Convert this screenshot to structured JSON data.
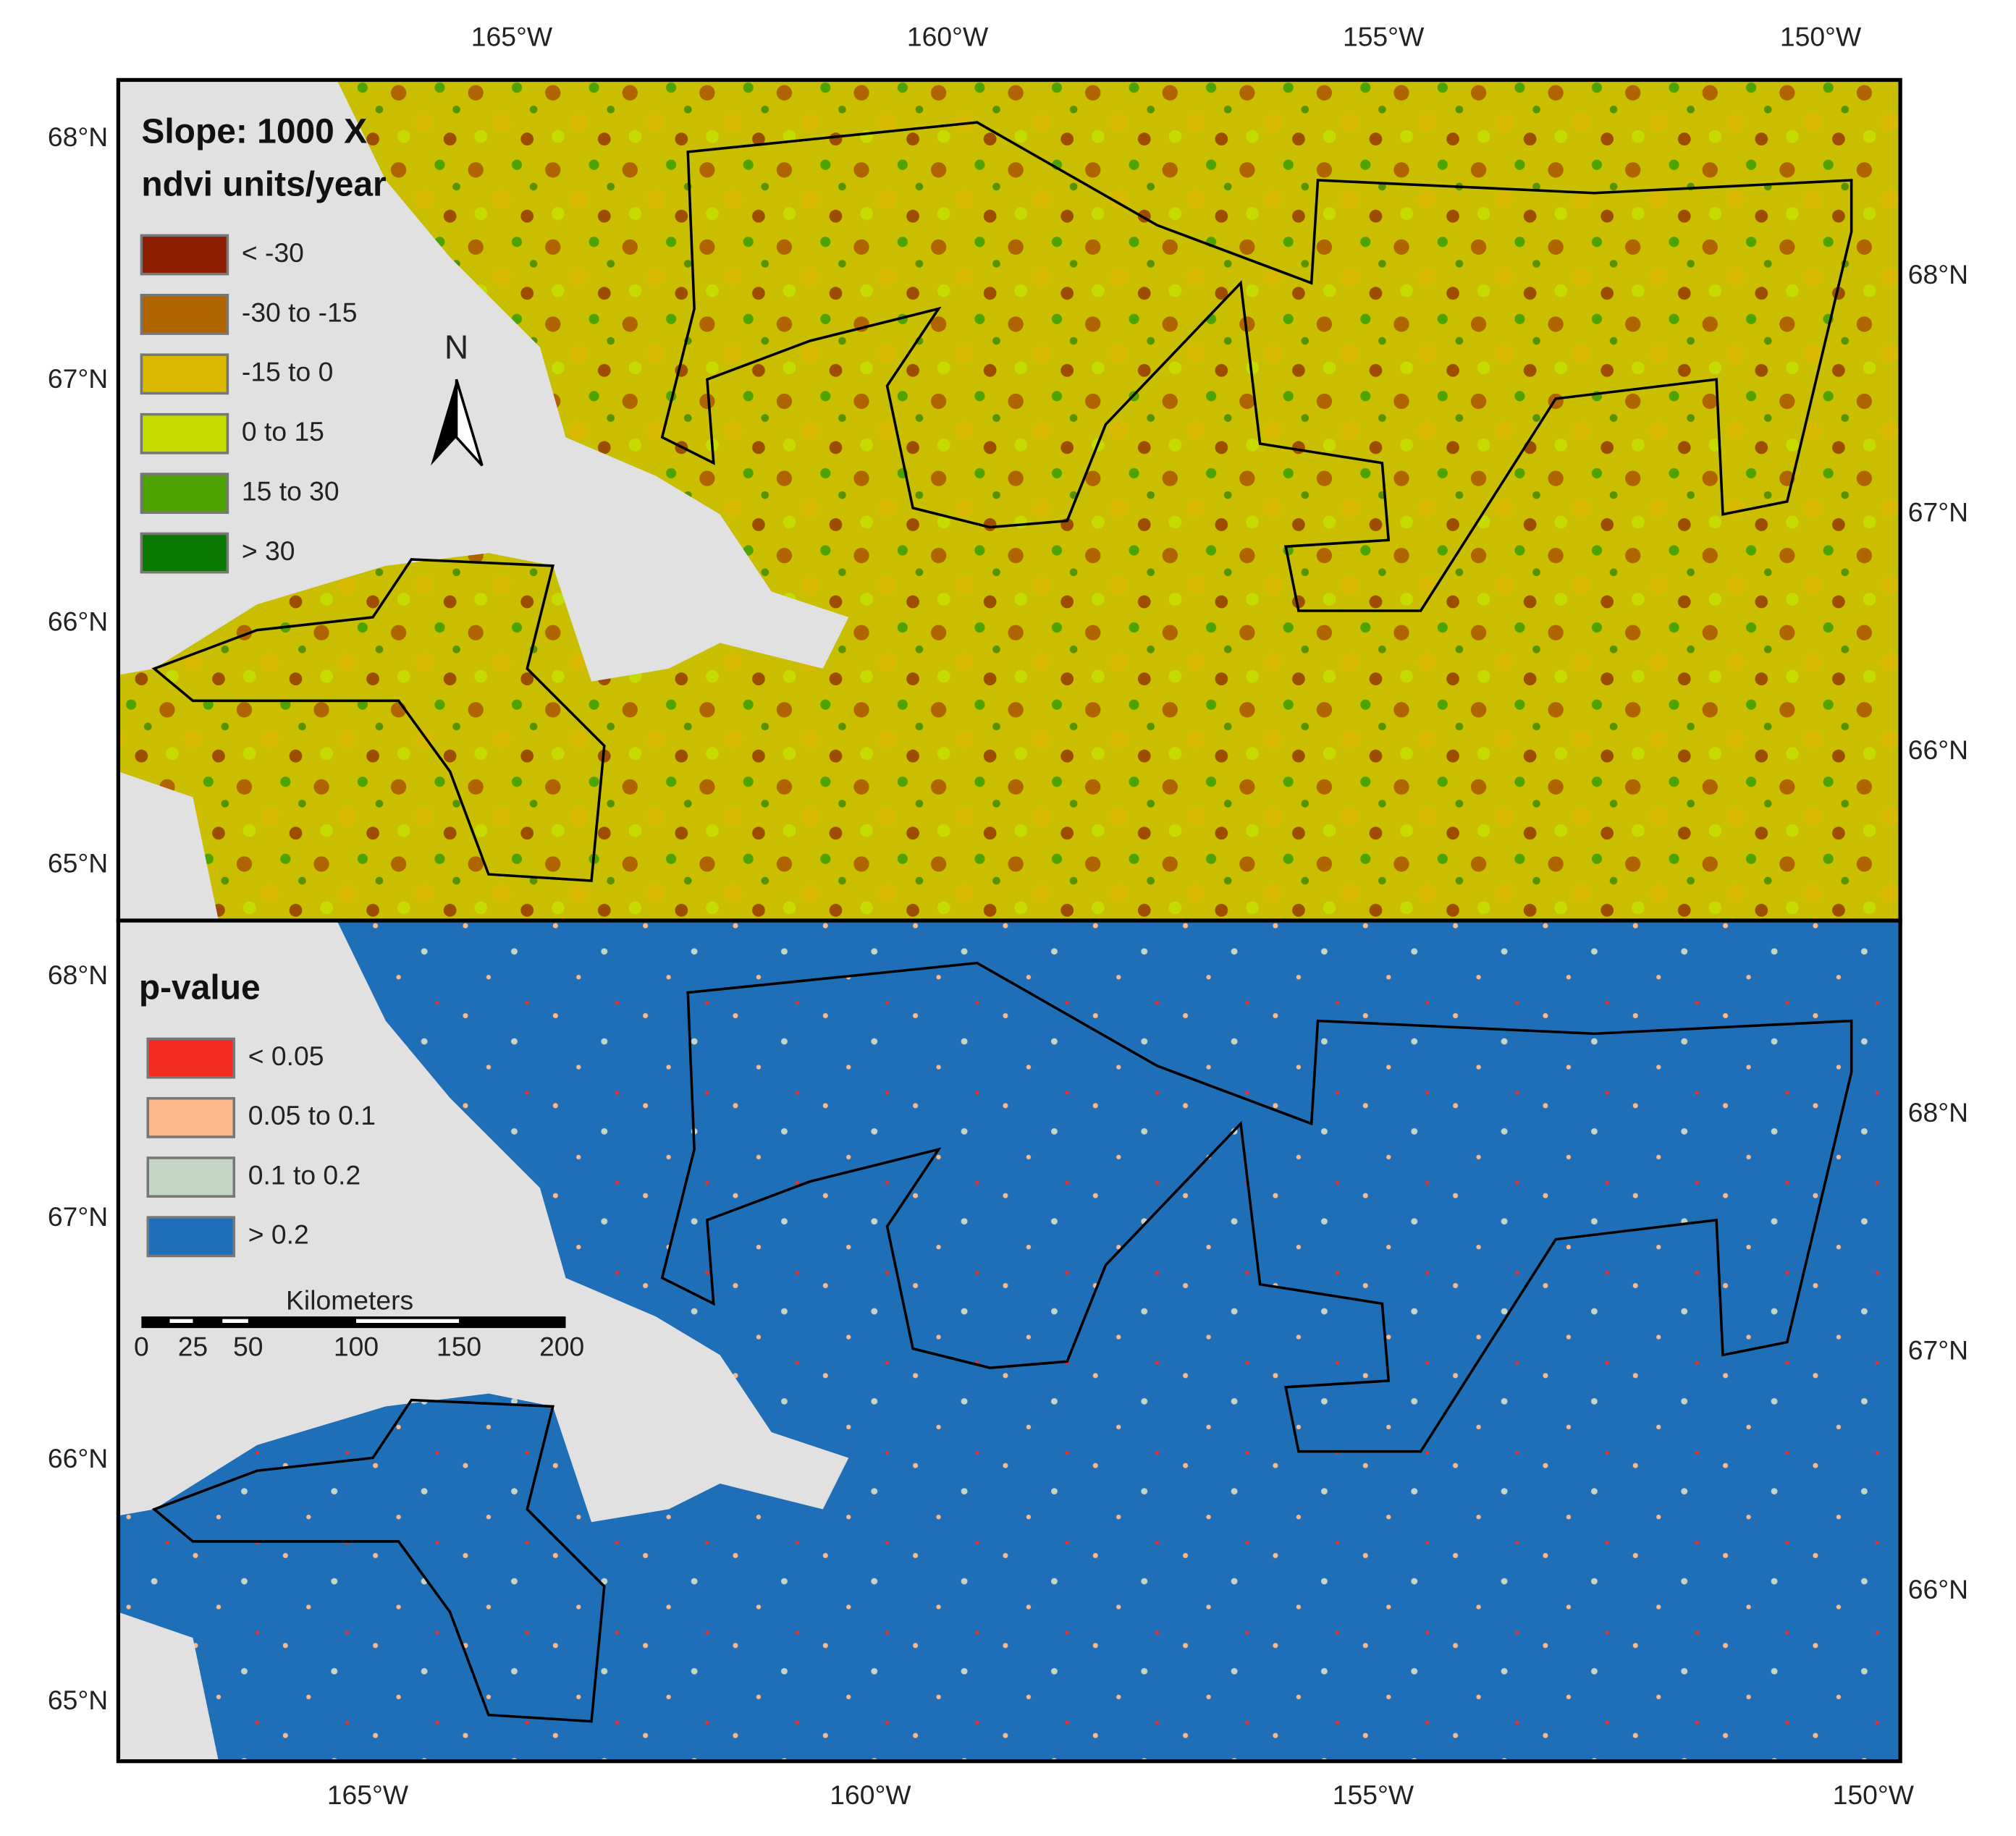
{
  "top_map": {
    "legend_title": [
      "Slope: 1000 X",
      "ndvi units/year"
    ],
    "legend": [
      {
        "label": "< -30",
        "color": "#8b1c00"
      },
      {
        "label": "-30 to -15",
        "color": "#b06400"
      },
      {
        "label": "-15 to 0",
        "color": "#d8b900"
      },
      {
        "label": "0 to 15",
        "color": "#c6dc00"
      },
      {
        "label": "15 to 30",
        "color": "#4fa300"
      },
      {
        "label": "> 30",
        "color": "#087800"
      }
    ],
    "north": "N",
    "x_labels": [
      "165°W",
      "160°W",
      "155°W",
      "150°W"
    ],
    "y_labels_left": [
      "68°N",
      "67°N",
      "66°N",
      "65°N"
    ],
    "y_labels_right": [
      "68°N",
      "67°N",
      "66°N"
    ]
  },
  "bottom_map": {
    "legend_title": "p-value",
    "legend": [
      {
        "label": "< 0.05",
        "color": "#f42b20"
      },
      {
        "label": "0.05 to 0.1",
        "color": "#fbb98b"
      },
      {
        "label": "0.1 to 0.2",
        "color": "#c5d5c6"
      },
      {
        "label": "> 0.2",
        "color": "#1f6eb8"
      }
    ],
    "scale_bar": {
      "title": "Kilometers",
      "labels": [
        "0",
        "25",
        "50",
        "100",
        "150",
        "200"
      ]
    },
    "x_labels": [
      "165°W",
      "160°W",
      "155°W",
      "150°W"
    ],
    "y_labels_left": [
      "68°N",
      "67°N",
      "66°N",
      "65°N"
    ],
    "y_labels_right": [
      "68°N",
      "67°N",
      "66°N"
    ]
  }
}
